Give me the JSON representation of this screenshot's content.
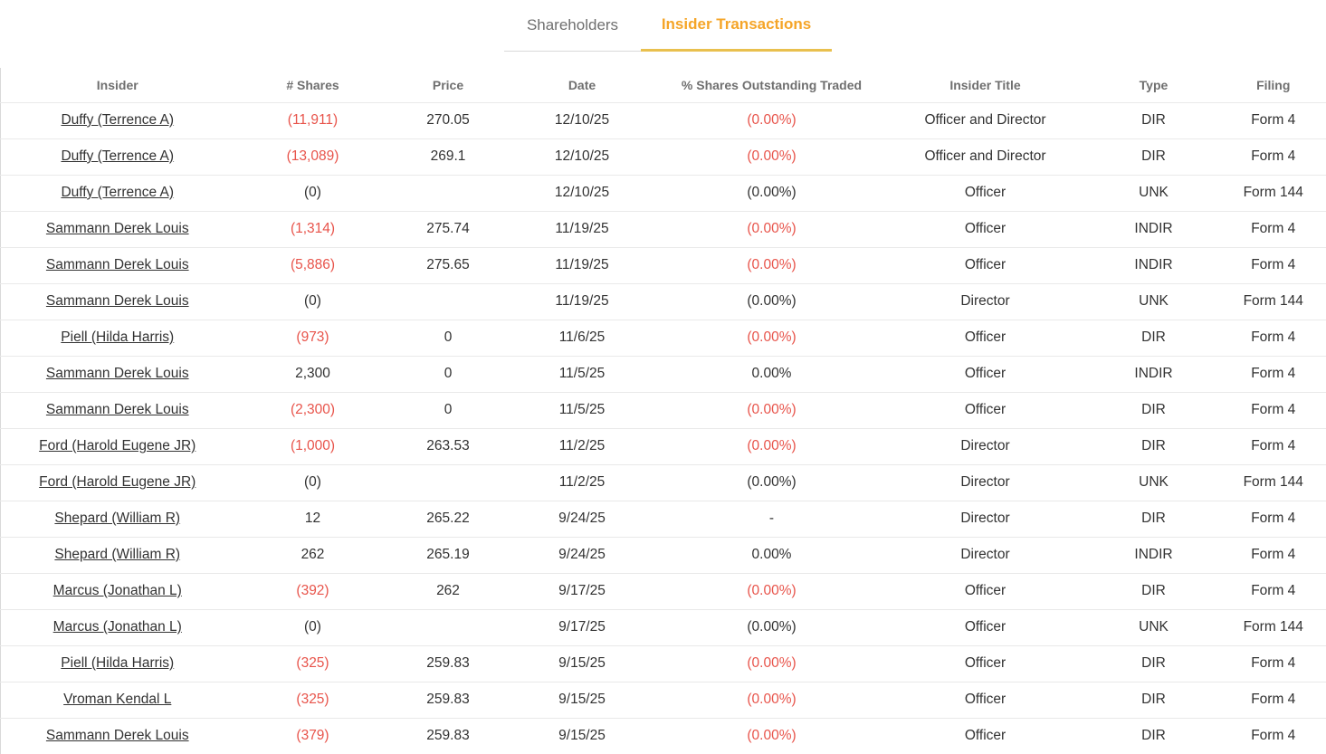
{
  "tabs": {
    "shareholders": "Shareholders",
    "insider_transactions": "Insider Transactions"
  },
  "colors": {
    "accent_orange": "#f5a528",
    "tab_underline": "#e9c04e",
    "negative_red": "#e8544b",
    "text_dark": "#323232",
    "text_gray": "#6f6f6f",
    "border_light": "#e9e9e9"
  },
  "table": {
    "columns": [
      "Insider",
      "# Shares",
      "Price",
      "Date",
      "% Shares Outstanding Traded",
      "Insider Title",
      "Type",
      "Filing"
    ],
    "rows": [
      {
        "insider": "Duffy (Terrence A)",
        "shares": "(11,911)",
        "shares_neg": true,
        "price": "270.05",
        "date": "12/10/25",
        "pct": "(0.00%)",
        "pct_neg": true,
        "title": "Officer and Director",
        "type": "DIR",
        "filing": "Form 4"
      },
      {
        "insider": "Duffy (Terrence A)",
        "shares": "(13,089)",
        "shares_neg": true,
        "price": "269.1",
        "date": "12/10/25",
        "pct": "(0.00%)",
        "pct_neg": true,
        "title": "Officer and Director",
        "type": "DIR",
        "filing": "Form 4"
      },
      {
        "insider": "Duffy (Terrence A)",
        "shares": "(0)",
        "shares_neg": false,
        "price": "",
        "date": "12/10/25",
        "pct": "(0.00%)",
        "pct_neg": false,
        "title": "Officer",
        "type": "UNK",
        "filing": "Form 144"
      },
      {
        "insider": "Sammann Derek Louis",
        "shares": "(1,314)",
        "shares_neg": true,
        "price": "275.74",
        "date": "11/19/25",
        "pct": "(0.00%)",
        "pct_neg": true,
        "title": "Officer",
        "type": "INDIR",
        "filing": "Form 4"
      },
      {
        "insider": "Sammann Derek Louis",
        "shares": "(5,886)",
        "shares_neg": true,
        "price": "275.65",
        "date": "11/19/25",
        "pct": "(0.00%)",
        "pct_neg": true,
        "title": "Officer",
        "type": "INDIR",
        "filing": "Form 4"
      },
      {
        "insider": "Sammann Derek Louis",
        "shares": "(0)",
        "shares_neg": false,
        "price": "",
        "date": "11/19/25",
        "pct": "(0.00%)",
        "pct_neg": false,
        "title": "Director",
        "type": "UNK",
        "filing": "Form 144"
      },
      {
        "insider": "Piell (Hilda Harris)",
        "shares": "(973)",
        "shares_neg": true,
        "price": "0",
        "date": "11/6/25",
        "pct": "(0.00%)",
        "pct_neg": true,
        "title": "Officer",
        "type": "DIR",
        "filing": "Form 4"
      },
      {
        "insider": "Sammann Derek Louis",
        "shares": "2,300",
        "shares_neg": false,
        "price": "0",
        "date": "11/5/25",
        "pct": "0.00%",
        "pct_neg": false,
        "title": "Officer",
        "type": "INDIR",
        "filing": "Form 4"
      },
      {
        "insider": "Sammann Derek Louis",
        "shares": "(2,300)",
        "shares_neg": true,
        "price": "0",
        "date": "11/5/25",
        "pct": "(0.00%)",
        "pct_neg": true,
        "title": "Officer",
        "type": "DIR",
        "filing": "Form 4"
      },
      {
        "insider": "Ford (Harold Eugene JR)",
        "shares": "(1,000)",
        "shares_neg": true,
        "price": "263.53",
        "date": "11/2/25",
        "pct": "(0.00%)",
        "pct_neg": true,
        "title": "Director",
        "type": "DIR",
        "filing": "Form 4"
      },
      {
        "insider": "Ford (Harold Eugene JR)",
        "shares": "(0)",
        "shares_neg": false,
        "price": "",
        "date": "11/2/25",
        "pct": "(0.00%)",
        "pct_neg": false,
        "title": "Director",
        "type": "UNK",
        "filing": "Form 144"
      },
      {
        "insider": "Shepard (William R)",
        "shares": "12",
        "shares_neg": false,
        "price": "265.22",
        "date": "9/24/25",
        "pct": "-",
        "pct_neg": false,
        "title": "Director",
        "type": "DIR",
        "filing": "Form 4"
      },
      {
        "insider": "Shepard (William R)",
        "shares": "262",
        "shares_neg": false,
        "price": "265.19",
        "date": "9/24/25",
        "pct": "0.00%",
        "pct_neg": false,
        "title": "Director",
        "type": "INDIR",
        "filing": "Form 4"
      },
      {
        "insider": "Marcus (Jonathan L)",
        "shares": "(392)",
        "shares_neg": true,
        "price": "262",
        "date": "9/17/25",
        "pct": "(0.00%)",
        "pct_neg": true,
        "title": "Officer",
        "type": "DIR",
        "filing": "Form 4"
      },
      {
        "insider": "Marcus (Jonathan L)",
        "shares": "(0)",
        "shares_neg": false,
        "price": "",
        "date": "9/17/25",
        "pct": "(0.00%)",
        "pct_neg": false,
        "title": "Officer",
        "type": "UNK",
        "filing": "Form 144"
      },
      {
        "insider": "Piell (Hilda Harris)",
        "shares": "(325)",
        "shares_neg": true,
        "price": "259.83",
        "date": "9/15/25",
        "pct": "(0.00%)",
        "pct_neg": true,
        "title": "Officer",
        "type": "DIR",
        "filing": "Form 4"
      },
      {
        "insider": "Vroman Kendal L",
        "shares": "(325)",
        "shares_neg": true,
        "price": "259.83",
        "date": "9/15/25",
        "pct": "(0.00%)",
        "pct_neg": true,
        "title": "Officer",
        "type": "DIR",
        "filing": "Form 4"
      },
      {
        "insider": "Sammann Derek Louis",
        "shares": "(379)",
        "shares_neg": true,
        "price": "259.83",
        "date": "9/15/25",
        "pct": "(0.00%)",
        "pct_neg": true,
        "title": "Officer",
        "type": "DIR",
        "filing": "Form 4"
      }
    ]
  }
}
